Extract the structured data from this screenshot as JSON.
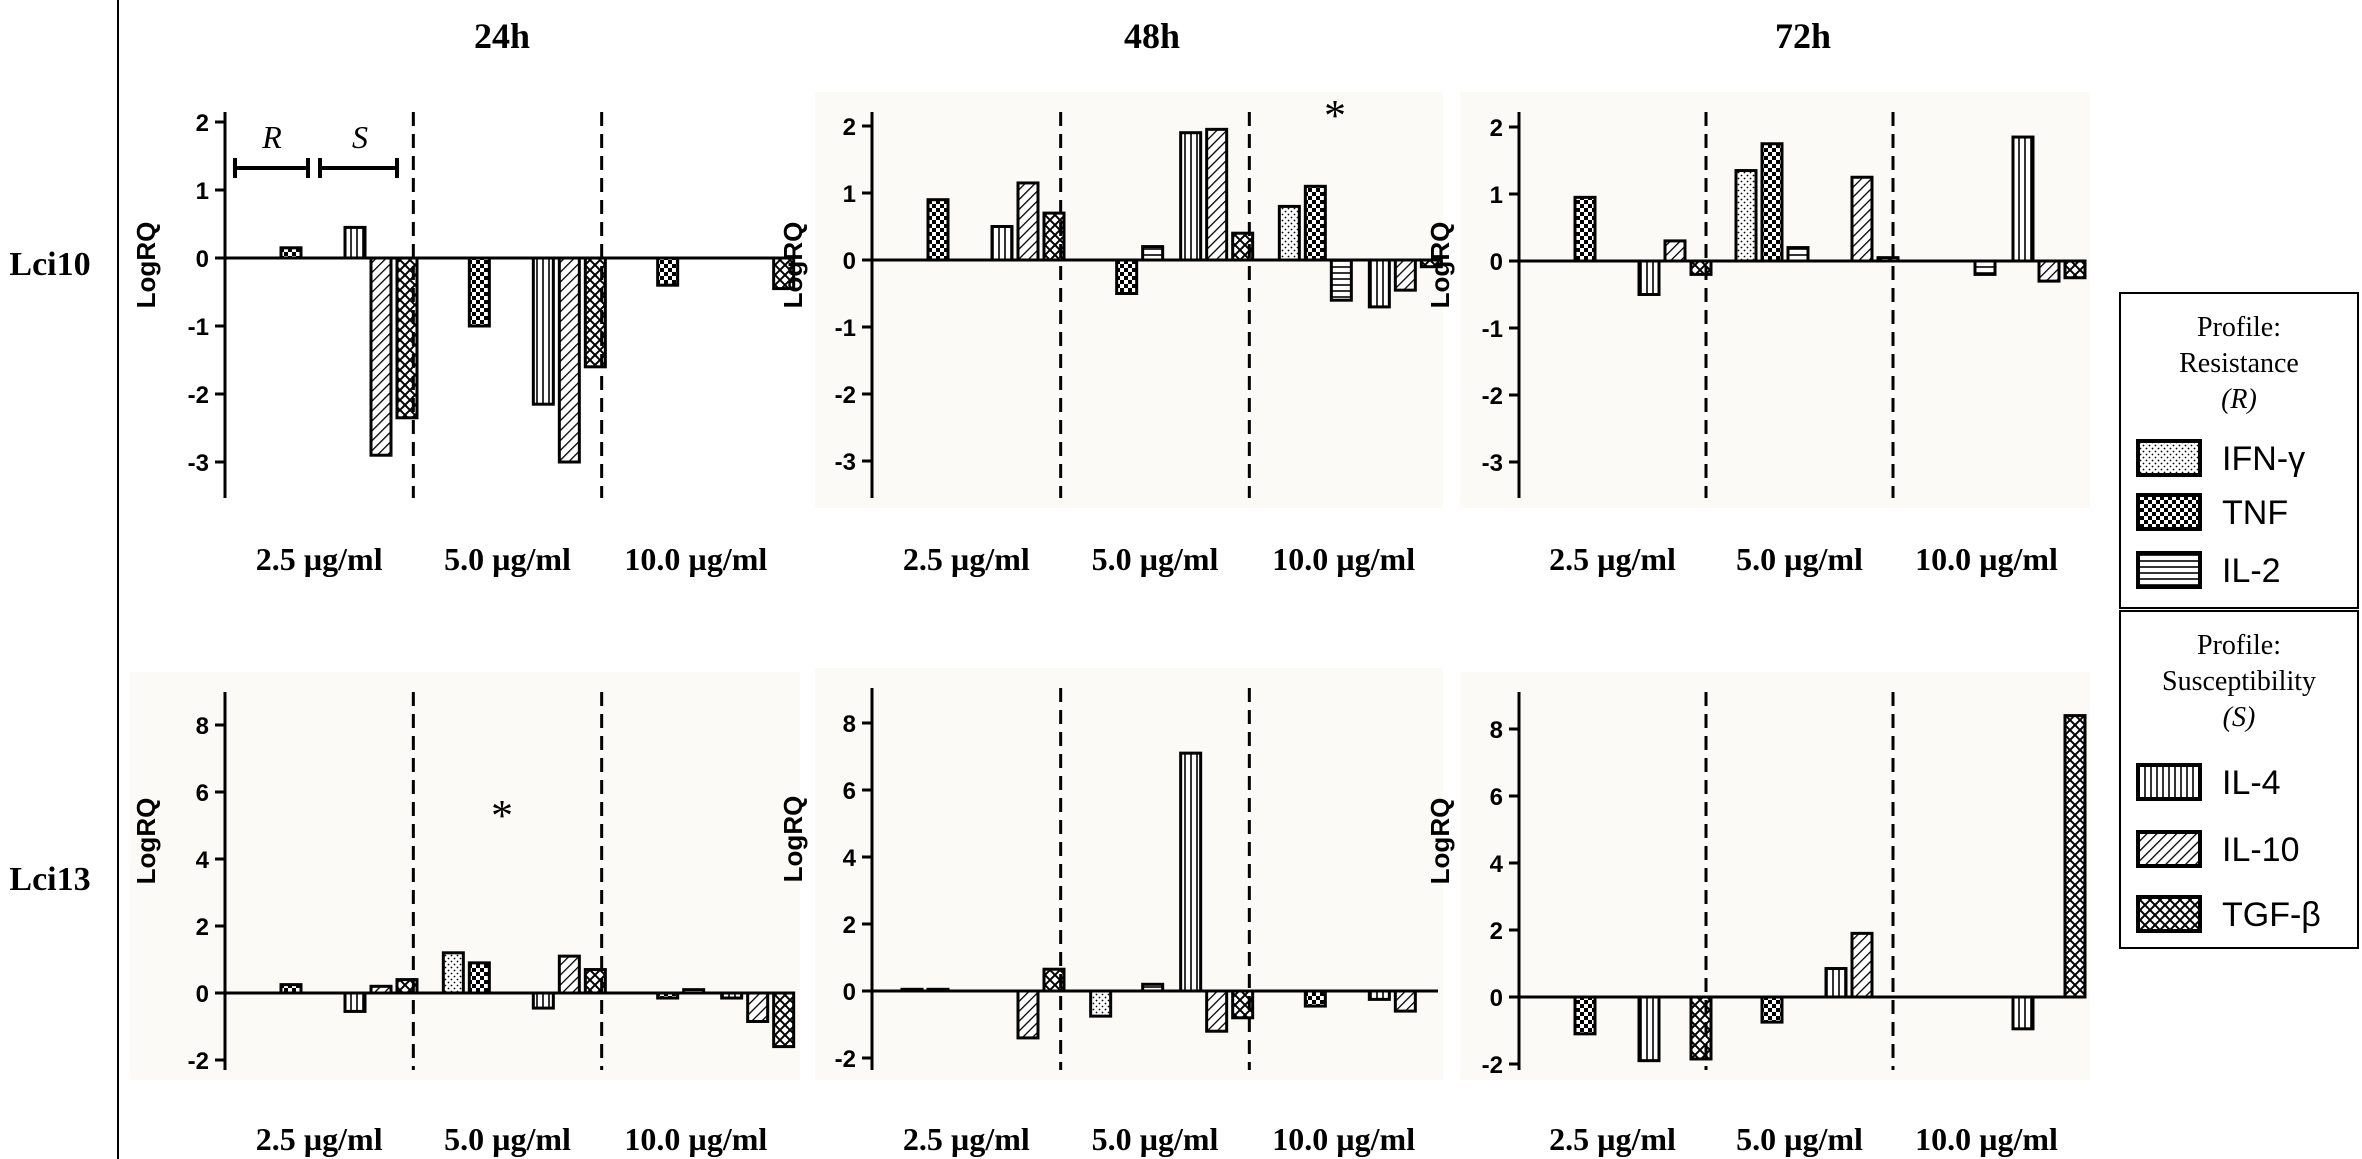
{
  "figure": {
    "column_titles": [
      "24h",
      "48h",
      "72h"
    ],
    "row_labels": [
      "Lci10",
      "Lci13"
    ],
    "ylabel": "LogRQ",
    "concentrations": [
      "2.5 µg/ml",
      "5.0 µg/ml",
      "10.0 µg/ml"
    ],
    "bracket_labels": [
      "R",
      "S"
    ],
    "significance_marker": "*"
  },
  "legend": {
    "resistance": {
      "line1": "Profile:",
      "line2": "Resistance",
      "line3": "(R)",
      "items": [
        "IFN-γ",
        "TNF",
        "IL-2"
      ]
    },
    "susceptibility": {
      "line1": "Profile:",
      "line2": "Susceptibility",
      "line3": "(S)",
      "items": [
        "IL-4",
        "IL-10",
        "TGF-β"
      ]
    }
  },
  "colors": {
    "ink": "#000000",
    "bar_fill": "#ffffff",
    "panel_bg": "#fbfaf7"
  },
  "chart_data": [
    {
      "type": "bar",
      "row": "Lci10",
      "time": "24h",
      "ylabel": "LogRQ",
      "ylim": [
        -3.5,
        2
      ],
      "yticks": [
        2,
        1,
        0,
        -1,
        -2,
        -3
      ],
      "categories": [
        "2.5 µg/ml",
        "5.0 µg/ml",
        "10.0 µg/ml"
      ],
      "series_order": [
        "IFN-γ",
        "TNF",
        "IL-2",
        "IL-4",
        "IL-10",
        "TGF-β"
      ],
      "values": [
        [
          0,
          0.15,
          0,
          0.45,
          -2.9,
          -2.35
        ],
        [
          0,
          -1.0,
          0,
          -2.15,
          -3.0,
          -1.6
        ],
        [
          0,
          -0.4,
          0,
          0,
          0,
          -0.45
        ]
      ],
      "annotations": []
    },
    {
      "type": "bar",
      "row": "Lci10",
      "time": "48h",
      "ylabel": "LogRQ",
      "ylim": [
        -3.5,
        2
      ],
      "yticks": [
        2,
        1,
        0,
        -1,
        -2,
        -3
      ],
      "categories": [
        "2.5 µg/ml",
        "5.0 µg/ml",
        "10.0 µg/ml"
      ],
      "series_order": [
        "IFN-γ",
        "TNF",
        "IL-2",
        "IL-4",
        "IL-10",
        "TGF-β"
      ],
      "values": [
        [
          0,
          0.9,
          0,
          0.5,
          1.15,
          0.7
        ],
        [
          0,
          -0.5,
          0.2,
          1.9,
          1.95,
          0.4
        ],
        [
          0.8,
          1.1,
          -0.6,
          -0.7,
          -0.45,
          -0.1
        ]
      ],
      "annotations": [
        {
          "text": "*",
          "category": "10.0 µg/ml"
        }
      ]
    },
    {
      "type": "bar",
      "row": "Lci10",
      "time": "72h",
      "ylabel": "LogRQ",
      "ylim": [
        -3.5,
        2
      ],
      "yticks": [
        2,
        1,
        0,
        -1,
        -2,
        -3
      ],
      "categories": [
        "2.5 µg/ml",
        "5.0 µg/ml",
        "10.0 µg/ml"
      ],
      "series_order": [
        "IFN-γ",
        "TNF",
        "IL-2",
        "IL-4",
        "IL-10",
        "TGF-β"
      ],
      "values": [
        [
          0,
          0.95,
          0,
          -0.5,
          0.3,
          -0.2
        ],
        [
          1.35,
          1.75,
          0.2,
          0,
          1.25,
          0.05
        ],
        [
          0,
          0,
          -0.2,
          1.85,
          -0.3,
          -0.25
        ]
      ],
      "annotations": []
    },
    {
      "type": "bar",
      "row": "Lci13",
      "time": "24h",
      "ylabel": "LogRQ",
      "ylim": [
        -2.2,
        9
      ],
      "yticks": [
        8,
        6,
        4,
        2,
        0,
        -2
      ],
      "categories": [
        "2.5 µg/ml",
        "5.0 µg/ml",
        "10.0 µg/ml"
      ],
      "series_order": [
        "IFN-γ",
        "TNF",
        "IL-2",
        "IL-4",
        "IL-10",
        "TGF-β"
      ],
      "values": [
        [
          0,
          0.25,
          0,
          -0.55,
          0.2,
          0.4
        ],
        [
          1.2,
          0.9,
          0,
          -0.45,
          1.1,
          0.7
        ],
        [
          0,
          -0.15,
          0.1,
          -0.15,
          -0.85,
          -1.6
        ]
      ],
      "annotations": [
        {
          "text": "*",
          "category": "5.0 µg/ml"
        }
      ]
    },
    {
      "type": "bar",
      "row": "Lci13",
      "time": "48h",
      "ylabel": "LogRQ",
      "ylim": [
        -2.2,
        9
      ],
      "yticks": [
        8,
        6,
        4,
        2,
        0,
        -2
      ],
      "categories": [
        "2.5 µg/ml",
        "5.0 µg/ml",
        "10.0 µg/ml"
      ],
      "series_order": [
        "IFN-γ",
        "TNF",
        "IL-2",
        "IL-4",
        "IL-10",
        "TGF-β"
      ],
      "values": [
        [
          0.05,
          0.05,
          0,
          0,
          -1.4,
          0.65
        ],
        [
          -0.75,
          0,
          0.2,
          7.1,
          -1.2,
          -0.8
        ],
        [
          0,
          -0.45,
          0,
          -0.25,
          -0.6,
          0
        ]
      ],
      "annotations": []
    },
    {
      "type": "bar",
      "row": "Lci13",
      "time": "72h",
      "ylabel": "LogRQ",
      "ylim": [
        -2.2,
        9
      ],
      "yticks": [
        8,
        6,
        4,
        2,
        0,
        -2
      ],
      "categories": [
        "2.5 µg/ml",
        "5.0 µg/ml",
        "10.0 µg/ml"
      ],
      "series_order": [
        "IFN-γ",
        "TNF",
        "IL-2",
        "IL-4",
        "IL-10",
        "TGF-β"
      ],
      "values": [
        [
          0,
          -1.1,
          0,
          -1.9,
          0,
          -1.85
        ],
        [
          0,
          -0.75,
          0,
          0.85,
          1.9,
          0
        ],
        [
          0,
          0,
          0,
          -0.95,
          0,
          8.4
        ]
      ],
      "annotations": []
    }
  ]
}
